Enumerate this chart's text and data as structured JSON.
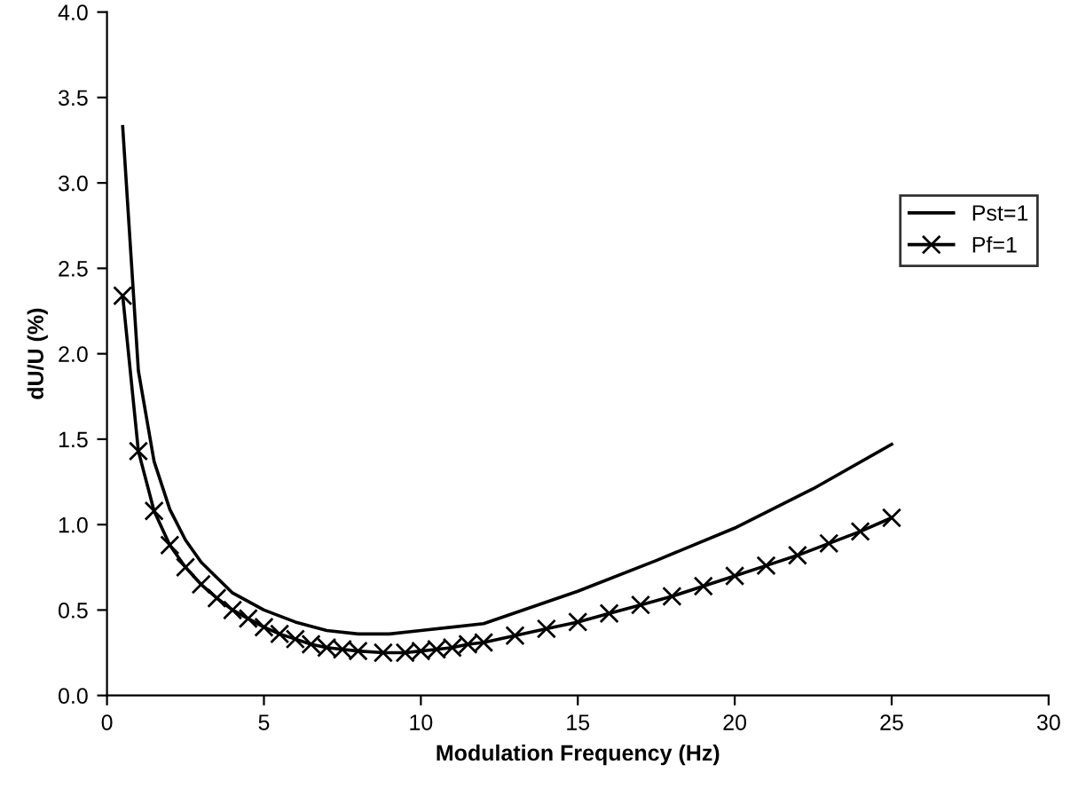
{
  "chart_data": {
    "type": "line",
    "xlabel": "Modulation Frequency (Hz)",
    "ylabel": "dU/U (%)",
    "xlim": [
      0,
      30
    ],
    "xticks": [
      0,
      5,
      10,
      15,
      20,
      25,
      30
    ],
    "ylim": [
      0,
      4
    ],
    "yticks": [
      {
        "value": 0,
        "label": "0.0"
      },
      {
        "value": 0.5,
        "label": "0.5"
      },
      {
        "value": 1,
        "label": "1.0"
      },
      {
        "value": 1.5,
        "label": "1.5"
      },
      {
        "value": 2,
        "label": "2.0"
      },
      {
        "value": 2.5,
        "label": "2.5"
      },
      {
        "value": 3,
        "label": "3.0"
      },
      {
        "value": 3.5,
        "label": "3.5"
      },
      {
        "value": 4,
        "label": "4.0"
      }
    ],
    "grid": false,
    "legend": "right",
    "series": [
      {
        "name": "Pst=1",
        "color": "#000000",
        "marker": "none",
        "x": [
          0.5,
          1,
          1.5,
          2,
          2.5,
          3,
          4,
          5,
          6,
          7,
          8,
          9,
          10,
          12,
          15,
          17.5,
          20,
          22.5,
          25
        ],
        "values": [
          3.33,
          1.9,
          1.37,
          1.09,
          0.91,
          0.78,
          0.6,
          0.5,
          0.43,
          0.38,
          0.36,
          0.36,
          0.38,
          0.42,
          0.61,
          0.79,
          0.98,
          1.21,
          1.47
        ]
      },
      {
        "name": "Pf=1",
        "color": "#000000",
        "marker": "cross",
        "x": [
          0.5,
          1,
          1.5,
          2,
          2.5,
          3,
          3.5,
          4,
          4.5,
          5,
          5.5,
          6,
          6.5,
          7,
          7.5,
          8,
          8.8,
          9.5,
          10,
          10.5,
          11,
          11.5,
          12,
          13,
          14,
          15,
          16,
          17,
          18,
          19,
          20,
          21,
          22,
          23,
          24,
          25
        ],
        "values": [
          2.34,
          1.43,
          1.08,
          0.88,
          0.75,
          0.65,
          0.57,
          0.5,
          0.45,
          0.4,
          0.36,
          0.33,
          0.3,
          0.28,
          0.27,
          0.26,
          0.25,
          0.25,
          0.26,
          0.27,
          0.28,
          0.3,
          0.31,
          0.35,
          0.39,
          0.43,
          0.48,
          0.53,
          0.58,
          0.64,
          0.7,
          0.76,
          0.82,
          0.89,
          0.96,
          1.04
        ]
      }
    ]
  }
}
